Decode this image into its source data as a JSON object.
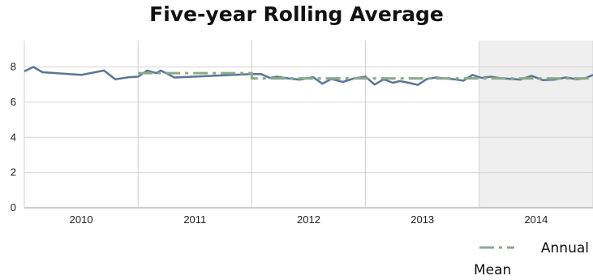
{
  "chart_data": {
    "type": "line",
    "title": "Five-year Rolling Average",
    "xlabel": "",
    "ylabel": "",
    "ylim": [
      0,
      9.5
    ],
    "y_ticks": [
      "0",
      "2",
      "4",
      "6",
      "8"
    ],
    "categories": [
      "2010",
      "2011",
      "2012",
      "2013",
      "2014"
    ],
    "grid": true,
    "legend_position": "bottom-right",
    "shaded_category": "2014",
    "series": [
      {
        "name": "",
        "style": "solid",
        "color": "#5b7595",
        "x": [
          0.0,
          0.08,
          0.16,
          0.5,
          0.7,
          0.8,
          0.92,
          1.0,
          1.08,
          1.16,
          1.2,
          1.32,
          2.0,
          2.08,
          2.16,
          2.22,
          2.32,
          2.42,
          2.54,
          2.62,
          2.7,
          2.8,
          2.9,
          3.0,
          3.08,
          3.16,
          3.24,
          3.3,
          3.38,
          3.46,
          3.54,
          3.62,
          3.7,
          3.78,
          3.86,
          3.94,
          4.02,
          4.1,
          4.2,
          4.28,
          4.36,
          4.46,
          4.56,
          4.66,
          4.76,
          4.86,
          4.94,
          5.0
        ],
        "values": [
          7.75,
          8.0,
          7.7,
          7.55,
          7.8,
          7.3,
          7.42,
          7.45,
          7.8,
          7.65,
          7.8,
          7.4,
          7.6,
          7.6,
          7.38,
          7.45,
          7.35,
          7.28,
          7.42,
          7.05,
          7.32,
          7.15,
          7.35,
          7.45,
          7.0,
          7.3,
          7.1,
          7.2,
          7.1,
          6.98,
          7.32,
          7.4,
          7.35,
          7.3,
          7.22,
          7.55,
          7.38,
          7.45,
          7.35,
          7.32,
          7.28,
          7.5,
          7.25,
          7.28,
          7.4,
          7.3,
          7.38,
          7.55
        ]
      },
      {
        "name": "Annual Mean",
        "style": "dash-dot",
        "color": "#8aaa8a",
        "x": [
          1.0,
          2.0,
          2.0,
          4.0,
          4.0,
          5.0
        ],
        "values": [
          7.65,
          7.65,
          7.35,
          7.35,
          7.35,
          7.35
        ]
      }
    ]
  }
}
